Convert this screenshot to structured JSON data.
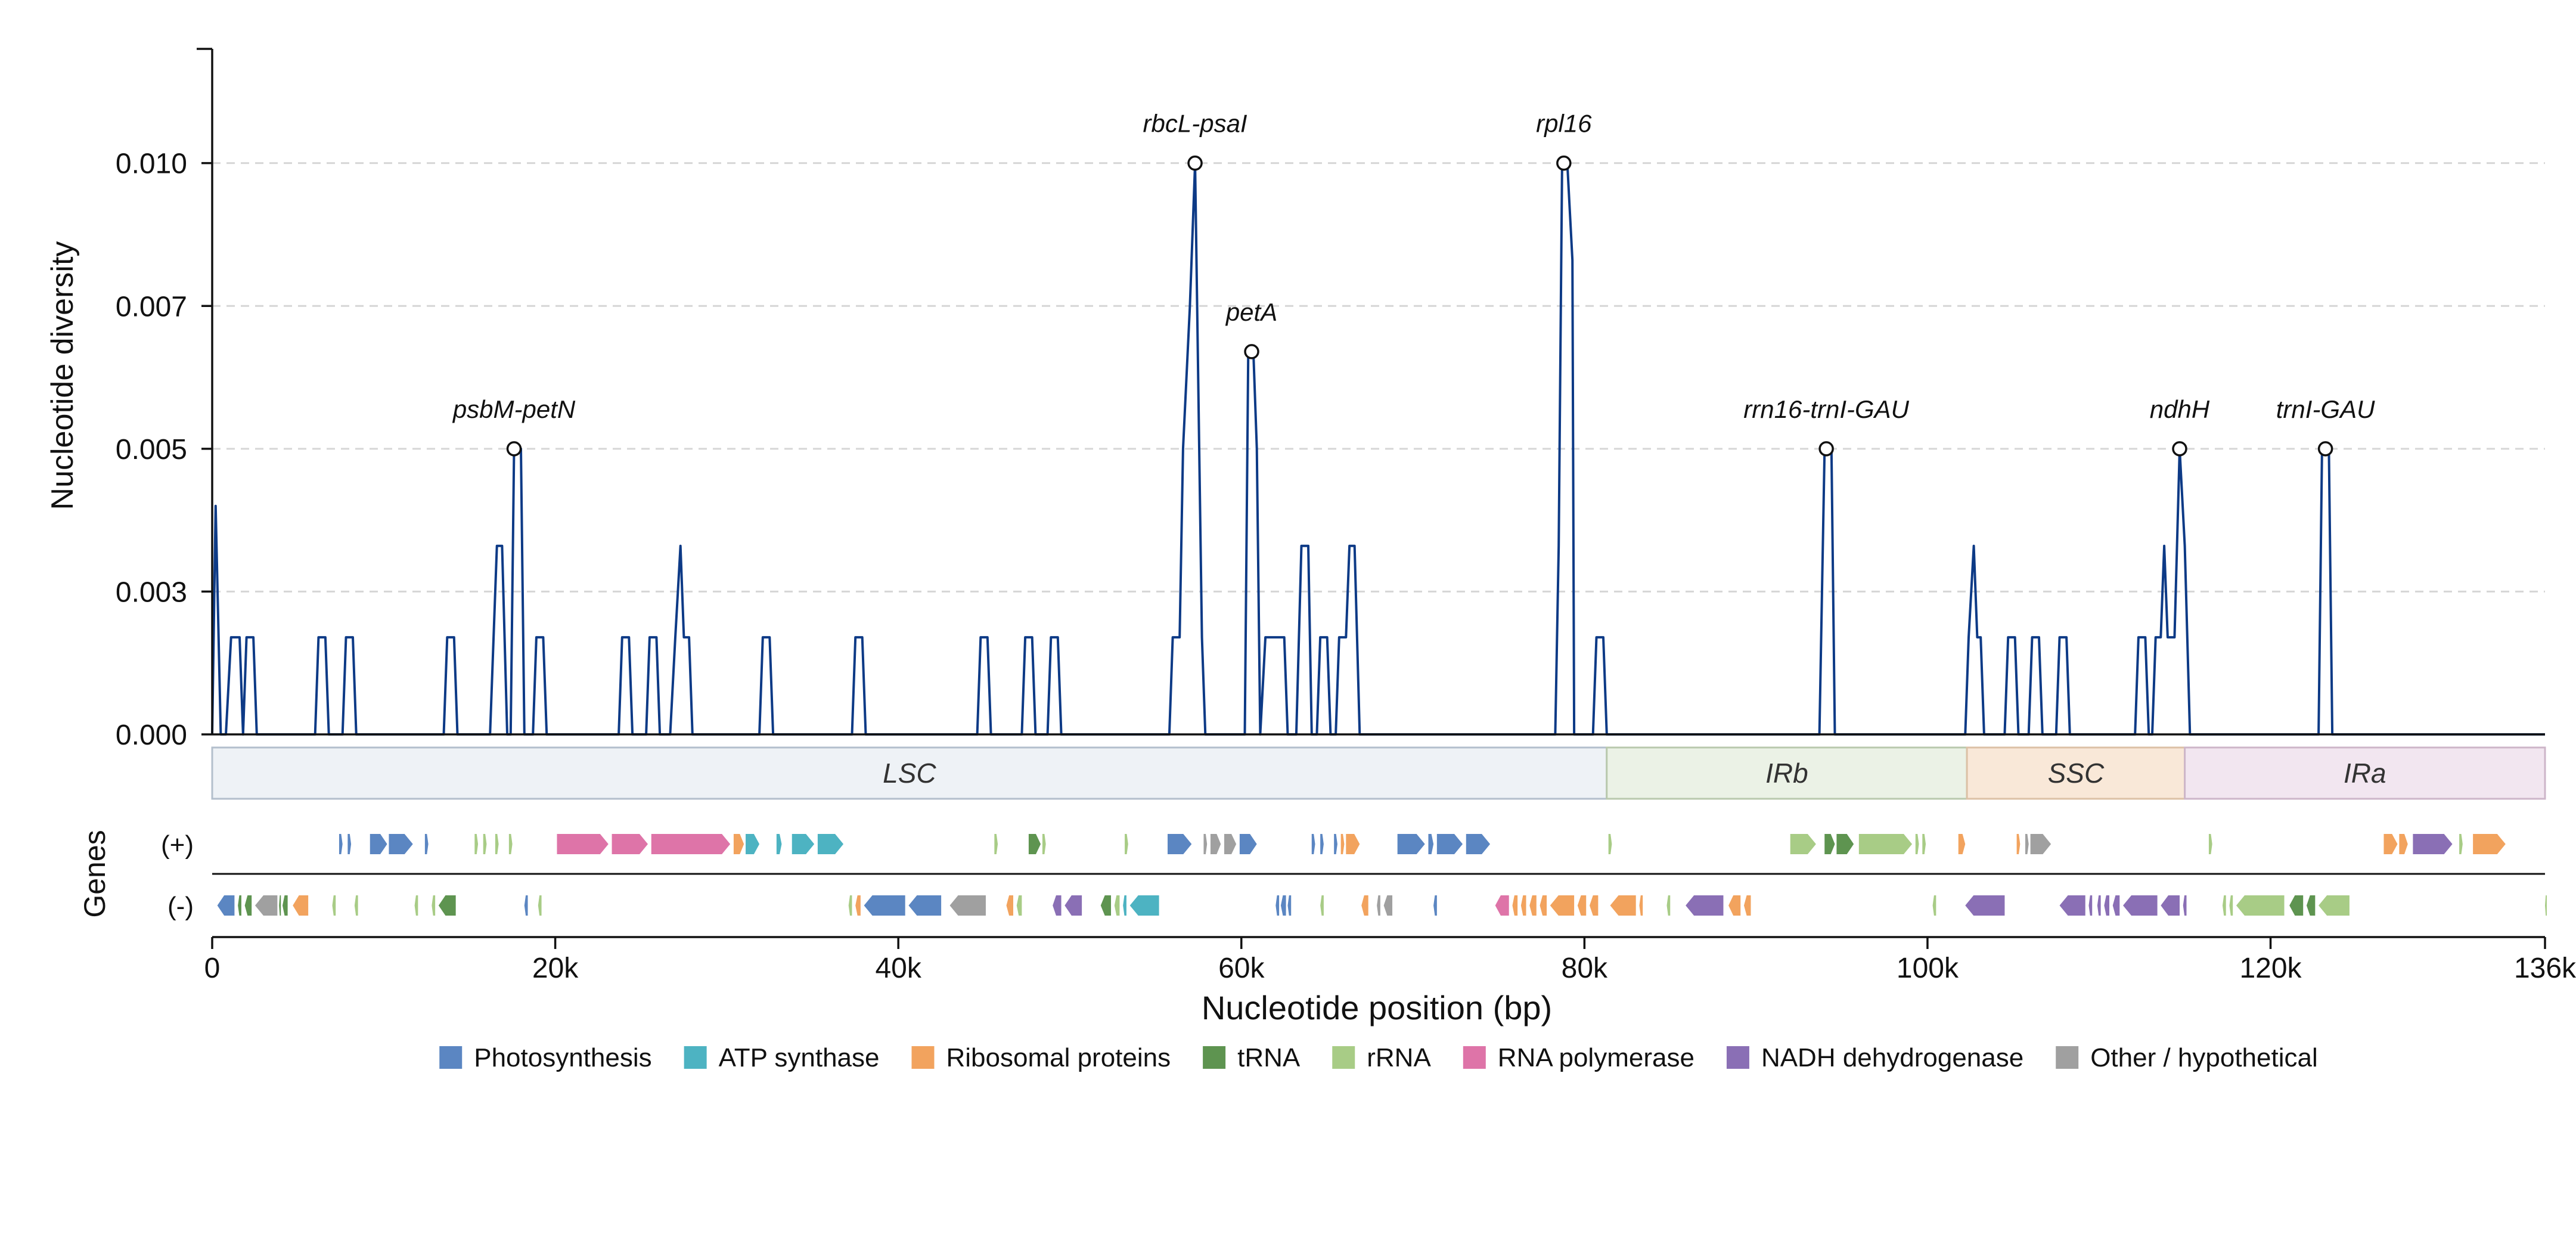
{
  "chart_data": {
    "type": "line",
    "ylabel": "Nucleotide diversity",
    "xlabel": "Nucleotide position (bp)",
    "genes_axis_label": "Genes",
    "strand_labels": [
      "(+)",
      "(-)"
    ],
    "xlim": [
      0,
      136000
    ],
    "ylim": [
      0,
      0.012
    ],
    "yticks": [
      0,
      0.0025,
      0.005,
      0.0075,
      0.01
    ],
    "ytick_labels": [
      "0.000",
      "0.003",
      "0.005",
      "0.007",
      "0.010"
    ],
    "xticks": [
      0,
      20000,
      40000,
      60000,
      80000,
      100000,
      120000,
      136000
    ],
    "xtick_labels": [
      "0",
      "20k",
      "40k",
      "60k",
      "80k",
      "100k",
      "120k",
      "136k"
    ],
    "grid": "y-dashed",
    "line_color": "#0d3a86",
    "series": [
      {
        "points": [
          [
            0,
            0
          ],
          [
            200,
            0.004
          ],
          [
            500,
            0
          ],
          [
            800,
            0
          ],
          [
            1100,
            0.0017
          ],
          [
            1600,
            0.0017
          ],
          [
            1800,
            0
          ],
          [
            2000,
            0.0017
          ],
          [
            2400,
            0.0017
          ],
          [
            2600,
            0
          ],
          [
            6000,
            0
          ],
          [
            6200,
            0.0017
          ],
          [
            6600,
            0.0017
          ],
          [
            6800,
            0
          ],
          [
            7600,
            0
          ],
          [
            7800,
            0.0017
          ],
          [
            8200,
            0.0017
          ],
          [
            8400,
            0
          ],
          [
            13500,
            0
          ],
          [
            13700,
            0.0017
          ],
          [
            14100,
            0.0017
          ],
          [
            14300,
            0
          ],
          [
            16200,
            0
          ],
          [
            16600,
            0.0033
          ],
          [
            16900,
            0.0033
          ],
          [
            17200,
            0
          ],
          [
            17400,
            0
          ],
          [
            17600,
            0.005
          ],
          [
            18000,
            0.005
          ],
          [
            18200,
            0
          ],
          [
            18700,
            0
          ],
          [
            18900,
            0.0017
          ],
          [
            19300,
            0.0017
          ],
          [
            19500,
            0
          ],
          [
            23700,
            0
          ],
          [
            23900,
            0.0017
          ],
          [
            24300,
            0.0017
          ],
          [
            24500,
            0
          ],
          [
            25300,
            0
          ],
          [
            25500,
            0.0017
          ],
          [
            25900,
            0.0017
          ],
          [
            26100,
            0
          ],
          [
            26700,
            0
          ],
          [
            27000,
            0.0017
          ],
          [
            27300,
            0.0033
          ],
          [
            27500,
            0.0017
          ],
          [
            27800,
            0.0017
          ],
          [
            28000,
            0
          ],
          [
            31900,
            0
          ],
          [
            32100,
            0.0017
          ],
          [
            32500,
            0.0017
          ],
          [
            32700,
            0
          ],
          [
            37300,
            0
          ],
          [
            37500,
            0.0017
          ],
          [
            37900,
            0.0017
          ],
          [
            38100,
            0
          ],
          [
            44600,
            0
          ],
          [
            44800,
            0.0017
          ],
          [
            45200,
            0.0017
          ],
          [
            45400,
            0
          ],
          [
            47200,
            0
          ],
          [
            47400,
            0.0017
          ],
          [
            47800,
            0.0017
          ],
          [
            48000,
            0
          ],
          [
            48700,
            0
          ],
          [
            48900,
            0.0017
          ],
          [
            49300,
            0.0017
          ],
          [
            49500,
            0
          ],
          [
            55800,
            0
          ],
          [
            56000,
            0.0017
          ],
          [
            56400,
            0.0017
          ],
          [
            56600,
            0.005
          ],
          [
            57000,
            0.0075
          ],
          [
            57300,
            0.01
          ],
          [
            57700,
            0.0017
          ],
          [
            57900,
            0
          ],
          [
            60200,
            0
          ],
          [
            60400,
            0.0067
          ],
          [
            60700,
            0.0067
          ],
          [
            60900,
            0.005
          ],
          [
            61100,
            0
          ],
          [
            61400,
            0.0017
          ],
          [
            62500,
            0.0017
          ],
          [
            62700,
            0
          ],
          [
            63200,
            0
          ],
          [
            63500,
            0.0033
          ],
          [
            63900,
            0.0033
          ],
          [
            64100,
            0
          ],
          [
            64400,
            0
          ],
          [
            64600,
            0.0017
          ],
          [
            65000,
            0.0017
          ],
          [
            65200,
            0
          ],
          [
            65500,
            0
          ],
          [
            65700,
            0.0017
          ],
          [
            66100,
            0.0017
          ],
          [
            66300,
            0.0033
          ],
          [
            66600,
            0.0033
          ],
          [
            66900,
            0
          ],
          [
            78300,
            0
          ],
          [
            78500,
            0.0033
          ],
          [
            78700,
            0.01
          ],
          [
            79000,
            0.01
          ],
          [
            79300,
            0.0083
          ],
          [
            79400,
            0
          ],
          [
            80500,
            0
          ],
          [
            80700,
            0.0017
          ],
          [
            81100,
            0.0017
          ],
          [
            81300,
            0
          ],
          [
            93700,
            0
          ],
          [
            94000,
            0.005
          ],
          [
            94400,
            0.005
          ],
          [
            94600,
            0
          ],
          [
            102200,
            0
          ],
          [
            102400,
            0.0017
          ],
          [
            102700,
            0.0033
          ],
          [
            102900,
            0.0017
          ],
          [
            103100,
            0.0017
          ],
          [
            103300,
            0
          ],
          [
            104500,
            0
          ],
          [
            104700,
            0.0017
          ],
          [
            105100,
            0.0017
          ],
          [
            105300,
            0
          ],
          [
            105900,
            0
          ],
          [
            106100,
            0.0017
          ],
          [
            106500,
            0.0017
          ],
          [
            106700,
            0
          ],
          [
            107500,
            0
          ],
          [
            107700,
            0.0017
          ],
          [
            108100,
            0.0017
          ],
          [
            108300,
            0
          ],
          [
            112100,
            0
          ],
          [
            112300,
            0.0017
          ],
          [
            112700,
            0.0017
          ],
          [
            112900,
            0
          ],
          [
            113100,
            0
          ],
          [
            113300,
            0.0017
          ],
          [
            113600,
            0.0017
          ],
          [
            113800,
            0.0033
          ],
          [
            114000,
            0.0017
          ],
          [
            114400,
            0.0017
          ],
          [
            114700,
            0.005
          ],
          [
            115000,
            0.0033
          ],
          [
            115300,
            0
          ],
          [
            122800,
            0
          ],
          [
            123000,
            0.005
          ],
          [
            123400,
            0.005
          ],
          [
            123600,
            0
          ],
          [
            136000,
            0
          ]
        ]
      }
    ],
    "annotations": [
      {
        "x": 17600,
        "y": 0.005,
        "label": "psbM-petN"
      },
      {
        "x": 57300,
        "y": 0.01,
        "label": "rbcL-psaI"
      },
      {
        "x": 60600,
        "y": 0.0067,
        "label": "petA"
      },
      {
        "x": 78800,
        "y": 0.01,
        "label": "rpl16"
      },
      {
        "x": 94100,
        "y": 0.005,
        "label": "rrn16-trnI-GAU"
      },
      {
        "x": 114700,
        "y": 0.005,
        "label": "ndhH"
      },
      {
        "x": 123200,
        "y": 0.005,
        "label": "trnI-GAU"
      }
    ],
    "regions": [
      {
        "label": "LSC",
        "start": 0,
        "end": 81300,
        "color": "#eef2f6",
        "border": "#b3bfcc"
      },
      {
        "label": "IRb",
        "start": 81300,
        "end": 102300,
        "color": "#ebf2e6",
        "border": "#b9c9ad"
      },
      {
        "label": "SSC",
        "start": 102300,
        "end": 115000,
        "color": "#f9e8d8",
        "border": "#dcc1a6"
      },
      {
        "label": "IRa",
        "start": 115000,
        "end": 136000,
        "color": "#f2e6f0",
        "border": "#cdb6c9"
      }
    ],
    "gene_categories": [
      {
        "name": "Photosynthesis",
        "color": "#5b86c2"
      },
      {
        "name": "ATP synthase",
        "color": "#4db3c2"
      },
      {
        "name": "Ribosomal proteins",
        "color": "#f2a35e"
      },
      {
        "name": "tRNA",
        "color": "#5e9450"
      },
      {
        "name": "rRNA",
        "color": "#a8cc86"
      },
      {
        "name": "RNA polymerase",
        "color": "#de74a8"
      },
      {
        "name": "NADH dehydrogenase",
        "color": "#8a6fb5"
      },
      {
        "name": "Other / hypothetical",
        "color": "#a0a0a0"
      }
    ],
    "genes_plus": [
      [
        7400,
        7600,
        0
      ],
      [
        7900,
        8100,
        0
      ],
      [
        9200,
        10200,
        0
      ],
      [
        10300,
        11700,
        0
      ],
      [
        12400,
        12600,
        0
      ],
      [
        15300,
        15500,
        4
      ],
      [
        15800,
        16000,
        4
      ],
      [
        16500,
        16700,
        4
      ],
      [
        17300,
        17500,
        4
      ],
      [
        20100,
        23100,
        5
      ],
      [
        23300,
        25400,
        5
      ],
      [
        25600,
        30200,
        5
      ],
      [
        30400,
        31000,
        2
      ],
      [
        31100,
        31900,
        1
      ],
      [
        32900,
        33200,
        1
      ],
      [
        33800,
        35100,
        1
      ],
      [
        35300,
        36800,
        1
      ],
      [
        45600,
        45800,
        4
      ],
      [
        47600,
        48300,
        3
      ],
      [
        48400,
        48600,
        4
      ],
      [
        53200,
        53400,
        4
      ],
      [
        55700,
        57100,
        0
      ],
      [
        57800,
        58000,
        7
      ],
      [
        58200,
        58800,
        7
      ],
      [
        59000,
        59700,
        7
      ],
      [
        59900,
        60900,
        0
      ],
      [
        64100,
        64300,
        0
      ],
      [
        64600,
        64800,
        0
      ],
      [
        65400,
        65600,
        0
      ],
      [
        65800,
        66000,
        2
      ],
      [
        66100,
        66900,
        2
      ],
      [
        69100,
        70700,
        0
      ],
      [
        70900,
        71200,
        0
      ],
      [
        71400,
        72900,
        0
      ],
      [
        73100,
        74500,
        0
      ],
      [
        81400,
        81600,
        4
      ],
      [
        92000,
        93500,
        4
      ],
      [
        94000,
        94600,
        3
      ],
      [
        94700,
        95700,
        3
      ],
      [
        96000,
        99100,
        4
      ],
      [
        99300,
        99500,
        4
      ],
      [
        99700,
        99900,
        4
      ],
      [
        101800,
        102200,
        2
      ],
      [
        105200,
        105400,
        2
      ],
      [
        105700,
        105900,
        7
      ],
      [
        106000,
        107200,
        7
      ],
      [
        116400,
        116600,
        4
      ],
      [
        126600,
        127400,
        2
      ],
      [
        127500,
        128000,
        2
      ],
      [
        128300,
        130600,
        6
      ],
      [
        131000,
        131200,
        4
      ],
      [
        131800,
        133700,
        2
      ]
    ],
    "genes_minus": [
      [
        300,
        1300,
        0
      ],
      [
        1500,
        1700,
        3
      ],
      [
        1900,
        2300,
        3
      ],
      [
        2500,
        3800,
        7
      ],
      [
        3900,
        4000,
        3
      ],
      [
        4100,
        4400,
        3
      ],
      [
        4700,
        5600,
        2
      ],
      [
        7000,
        7200,
        4
      ],
      [
        8300,
        8500,
        4
      ],
      [
        11800,
        12000,
        4
      ],
      [
        12800,
        13000,
        4
      ],
      [
        13200,
        14200,
        3
      ],
      [
        18200,
        18400,
        0
      ],
      [
        19000,
        19200,
        4
      ],
      [
        37100,
        37300,
        4
      ],
      [
        37500,
        37800,
        2
      ],
      [
        38000,
        40400,
        0
      ],
      [
        40600,
        42500,
        0
      ],
      [
        43000,
        45100,
        7
      ],
      [
        46300,
        46700,
        2
      ],
      [
        46900,
        47200,
        4
      ],
      [
        49000,
        49500,
        6
      ],
      [
        49700,
        50700,
        6
      ],
      [
        51800,
        52400,
        3
      ],
      [
        52600,
        52900,
        4
      ],
      [
        53100,
        53300,
        1
      ],
      [
        53500,
        55200,
        1
      ],
      [
        62000,
        62200,
        0
      ],
      [
        62300,
        62600,
        0
      ],
      [
        62700,
        62900,
        0
      ],
      [
        64600,
        64800,
        4
      ],
      [
        67000,
        67400,
        2
      ],
      [
        67900,
        68100,
        7
      ],
      [
        68300,
        68800,
        7
      ],
      [
        71200,
        71400,
        0
      ],
      [
        74800,
        75600,
        5
      ],
      [
        75800,
        76100,
        2
      ],
      [
        76300,
        76600,
        2
      ],
      [
        76800,
        77200,
        2
      ],
      [
        77400,
        77800,
        2
      ],
      [
        78000,
        79400,
        2
      ],
      [
        79600,
        80100,
        2
      ],
      [
        80300,
        80800,
        2
      ],
      [
        81500,
        83000,
        2
      ],
      [
        83200,
        83400,
        2
      ],
      [
        84800,
        85000,
        4
      ],
      [
        85900,
        88100,
        6
      ],
      [
        88400,
        89100,
        2
      ],
      [
        89300,
        89700,
        2
      ],
      [
        100300,
        100500,
        4
      ],
      [
        102200,
        104500,
        6
      ],
      [
        107700,
        109200,
        6
      ],
      [
        109400,
        109600,
        6
      ],
      [
        109900,
        110100,
        6
      ],
      [
        110300,
        110600,
        6
      ],
      [
        110800,
        111200,
        6
      ],
      [
        111400,
        113400,
        6
      ],
      [
        113600,
        114700,
        6
      ],
      [
        114900,
        115100,
        6
      ],
      [
        117200,
        117400,
        4
      ],
      [
        117600,
        117800,
        4
      ],
      [
        118000,
        120800,
        4
      ],
      [
        121100,
        121900,
        3
      ],
      [
        122100,
        122600,
        3
      ],
      [
        122800,
        124600,
        4
      ],
      [
        136000,
        136000,
        4
      ]
    ]
  }
}
